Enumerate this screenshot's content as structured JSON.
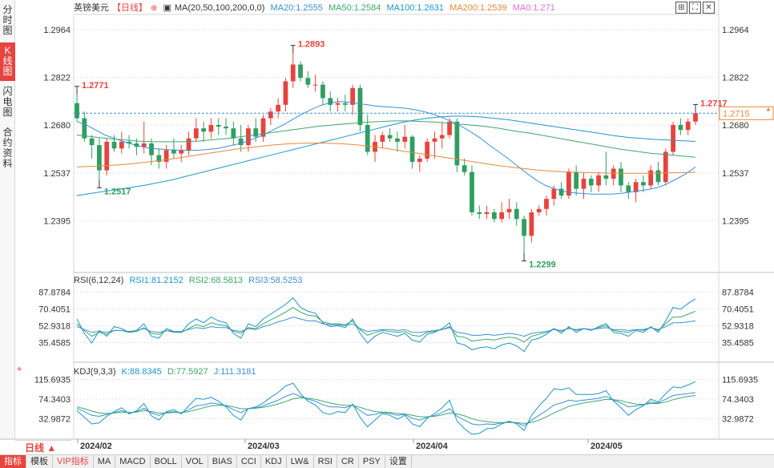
{
  "side_tabs": [
    {
      "label": "分时图",
      "active": false
    },
    {
      "label": "K线图",
      "active": true
    },
    {
      "label": "闪电图",
      "active": false
    },
    {
      "label": "合约资料",
      "active": false
    }
  ],
  "header": {
    "symbol": "英镑美元",
    "period": "【日线】",
    "ma_params": "MA(20,50,100,200,0,0)",
    "ma20": "MA20:1.2555",
    "ma50": "MA50:1.2584",
    "ma100": "MA100:1.2631",
    "ma200": "MA200:1.2539",
    "ma0": "MA0:1.271"
  },
  "window_icons": [
    "expand-icon",
    "fullscreen-icon",
    "close-icon"
  ],
  "price_axis": {
    "ticks": [
      "1.2964",
      "1.2822",
      "1.2680",
      "1.2537",
      "1.2395"
    ],
    "current": "1.2715"
  },
  "annotations": {
    "high_1": "1.2771",
    "low_1": "1.2517",
    "high_main": "1.2893",
    "low_main": "1.2299",
    "high_recent": "1.2717"
  },
  "rsi": {
    "title": "RSI(6,12,24)",
    "rsi1": "RSI1:81.2152",
    "rsi2": "RSI2:68.5813",
    "rsi3": "RSI3:58.5253",
    "ticks": [
      "87.8784",
      "70.4051",
      "52.9318",
      "35.4585"
    ]
  },
  "kdj": {
    "title": "KDJ(9,3,3)",
    "k": "K:88.8345",
    "d": "D:77.5927",
    "j": "J:111.3181",
    "ticks": [
      "115.6935",
      "74.3403",
      "32.9872"
    ]
  },
  "time_axis": [
    "2024/02",
    "2024/03",
    "2024/04",
    "2024/05"
  ],
  "period_button": "日线",
  "toolbar": [
    {
      "label": "指标",
      "active": true
    },
    {
      "label": "模板"
    },
    {
      "label": "VIP指标",
      "vip": true
    },
    {
      "label": "MA"
    },
    {
      "label": "MACD"
    },
    {
      "label": "BOLL"
    },
    {
      "label": "VOL"
    },
    {
      "label": "BIAS"
    },
    {
      "label": "CCI"
    },
    {
      "label": "KDJ"
    },
    {
      "label": "LW&"
    },
    {
      "label": "RSI"
    },
    {
      "label": "CR"
    },
    {
      "label": "PSY"
    },
    {
      "label": "设置"
    }
  ],
  "colors": {
    "up": "#e8433d",
    "down": "#2f9e61",
    "ma20": "#3a8fd6",
    "ma50": "#3aa86b",
    "ma100": "#1b96c9",
    "ma200": "#e8883a",
    "ma0": "#e06bd0",
    "grid": "#e3e3e3"
  },
  "chart_data": {
    "type": "candlestick",
    "title": "英镑美元 日线",
    "ylim": [
      1.226,
      1.299
    ],
    "candles": [
      [
        1.2745,
        1.2771,
        1.269,
        1.27
      ],
      [
        1.27,
        1.272,
        1.263,
        1.264
      ],
      [
        1.264,
        1.265,
        1.258,
        1.262
      ],
      [
        1.262,
        1.264,
        1.2517,
        1.2545
      ],
      [
        1.2545,
        1.264,
        1.253,
        1.263
      ],
      [
        1.263,
        1.265,
        1.26,
        1.261
      ],
      [
        1.261,
        1.266,
        1.2595,
        1.263
      ],
      [
        1.263,
        1.265,
        1.261,
        1.2625
      ],
      [
        1.2625,
        1.264,
        1.259,
        1.2615
      ],
      [
        1.2615,
        1.269,
        1.2595,
        1.2625
      ],
      [
        1.2625,
        1.264,
        1.256,
        1.259
      ],
      [
        1.259,
        1.261,
        1.255,
        1.257
      ],
      [
        1.257,
        1.262,
        1.255,
        1.2605
      ],
      [
        1.2605,
        1.264,
        1.258,
        1.2595
      ],
      [
        1.2595,
        1.262,
        1.257,
        1.2605
      ],
      [
        1.2605,
        1.266,
        1.259,
        1.264
      ],
      [
        1.264,
        1.27,
        1.263,
        1.267
      ],
      [
        1.267,
        1.269,
        1.263,
        1.266
      ],
      [
        1.266,
        1.27,
        1.264,
        1.268
      ],
      [
        1.268,
        1.27,
        1.265,
        1.2675
      ],
      [
        1.2675,
        1.27,
        1.265,
        1.267
      ],
      [
        1.267,
        1.269,
        1.262,
        1.264
      ],
      [
        1.264,
        1.268,
        1.26,
        1.262
      ],
      [
        1.262,
        1.268,
        1.26,
        1.267
      ],
      [
        1.267,
        1.27,
        1.263,
        1.2645
      ],
      [
        1.2645,
        1.271,
        1.263,
        1.27
      ],
      [
        1.27,
        1.273,
        1.268,
        1.272
      ],
      [
        1.272,
        1.276,
        1.27,
        1.274
      ],
      [
        1.274,
        1.282,
        1.272,
        1.281
      ],
      [
        1.281,
        1.2893,
        1.279,
        1.286
      ],
      [
        1.286,
        1.287,
        1.281,
        1.282
      ],
      [
        1.282,
        1.284,
        1.279,
        1.28
      ],
      [
        1.28,
        1.283,
        1.278,
        1.28
      ],
      [
        1.28,
        1.281,
        1.274,
        1.276
      ],
      [
        1.276,
        1.278,
        1.272,
        1.274
      ],
      [
        1.274,
        1.276,
        1.272,
        1.2745
      ],
      [
        1.2745,
        1.277,
        1.272,
        1.274
      ],
      [
        1.274,
        1.28,
        1.271,
        1.279
      ],
      [
        1.279,
        1.28,
        1.266,
        1.268
      ],
      [
        1.268,
        1.271,
        1.259,
        1.26
      ],
      [
        1.26,
        1.265,
        1.257,
        1.263
      ],
      [
        1.263,
        1.266,
        1.261,
        1.265
      ],
      [
        1.265,
        1.267,
        1.263,
        1.264
      ],
      [
        1.264,
        1.266,
        1.26,
        1.263
      ],
      [
        1.263,
        1.268,
        1.261,
        1.2645
      ],
      [
        1.2645,
        1.265,
        1.255,
        1.257
      ],
      [
        1.257,
        1.259,
        1.254,
        1.258
      ],
      [
        1.258,
        1.264,
        1.257,
        1.263
      ],
      [
        1.263,
        1.266,
        1.258,
        1.264
      ],
      [
        1.264,
        1.269,
        1.261,
        1.265
      ],
      [
        1.265,
        1.27,
        1.264,
        1.269
      ],
      [
        1.269,
        1.27,
        1.254,
        1.256
      ],
      [
        1.256,
        1.258,
        1.253,
        1.254
      ],
      [
        1.254,
        1.256,
        1.241,
        1.242
      ],
      [
        1.242,
        1.244,
        1.24,
        1.2415
      ],
      [
        1.2415,
        1.244,
        1.24,
        1.242
      ],
      [
        1.242,
        1.243,
        1.239,
        1.24
      ],
      [
        1.24,
        1.245,
        1.239,
        1.242
      ],
      [
        1.242,
        1.246,
        1.24,
        1.243
      ],
      [
        1.243,
        1.245,
        1.238,
        1.24
      ],
      [
        1.24,
        1.241,
        1.2299,
        1.235
      ],
      [
        1.235,
        1.243,
        1.233,
        1.242
      ],
      [
        1.242,
        1.244,
        1.241,
        1.243
      ],
      [
        1.243,
        1.247,
        1.241,
        1.246
      ],
      [
        1.246,
        1.25,
        1.244,
        1.249
      ],
      [
        1.249,
        1.251,
        1.246,
        1.247
      ],
      [
        1.247,
        1.255,
        1.246,
        1.254
      ],
      [
        1.254,
        1.256,
        1.247,
        1.249
      ],
      [
        1.249,
        1.254,
        1.246,
        1.252
      ],
      [
        1.252,
        1.253,
        1.248,
        1.25
      ],
      [
        1.25,
        1.254,
        1.248,
        1.253
      ],
      [
        1.253,
        1.26,
        1.25,
        1.252
      ],
      [
        1.252,
        1.256,
        1.25,
        1.255
      ],
      [
        1.255,
        1.257,
        1.248,
        1.25
      ],
      [
        1.25,
        1.251,
        1.246,
        1.248
      ],
      [
        1.248,
        1.252,
        1.245,
        1.251
      ],
      [
        1.251,
        1.253,
        1.248,
        1.25
      ],
      [
        1.25,
        1.256,
        1.249,
        1.2545
      ],
      [
        1.2545,
        1.257,
        1.25,
        1.251
      ],
      [
        1.251,
        1.261,
        1.25,
        1.26
      ],
      [
        1.26,
        1.269,
        1.259,
        1.268
      ],
      [
        1.268,
        1.27,
        1.265,
        1.2665
      ],
      [
        1.2665,
        1.27,
        1.265,
        1.269
      ],
      [
        1.269,
        1.2717,
        1.268,
        1.2715
      ]
    ],
    "ma_lines": {
      "MA20": [
        1.269,
        1.268,
        1.2665,
        1.265,
        1.264,
        1.263,
        1.2622,
        1.2615,
        1.261,
        1.2608,
        1.2606,
        1.2605,
        1.2604,
        1.2605,
        1.2607,
        1.261,
        1.2616,
        1.2622,
        1.263,
        1.264,
        1.2652,
        1.2666,
        1.268,
        1.2696,
        1.2712,
        1.2726,
        1.2738,
        1.2746,
        1.275,
        1.2748,
        1.2744,
        1.274,
        1.2736,
        1.2734,
        1.2732,
        1.273,
        1.2726,
        1.272,
        1.2712,
        1.2702,
        1.269,
        1.2676,
        1.266,
        1.2642,
        1.262,
        1.26,
        1.258,
        1.2558,
        1.2536,
        1.2516,
        1.25,
        1.249,
        1.2482,
        1.2478,
        1.2476,
        1.2474,
        1.2474,
        1.2474,
        1.2476,
        1.248,
        1.2484,
        1.2488,
        1.2494,
        1.2505,
        1.252,
        1.2535,
        1.2555
      ],
      "MA50": [
        1.265,
        1.2645,
        1.264,
        1.2636,
        1.2632,
        1.263,
        1.263,
        1.263,
        1.2632,
        1.2636,
        1.264,
        1.2646,
        1.2652,
        1.2658,
        1.2664,
        1.267,
        1.2676,
        1.268,
        1.2684,
        1.2688,
        1.269,
        1.2692,
        1.2692,
        1.269,
        1.2688,
        1.2684,
        1.268,
        1.2676,
        1.267,
        1.2662,
        1.2656,
        1.2648,
        1.264,
        1.2632,
        1.2624,
        1.2616,
        1.2608,
        1.2602,
        1.2596,
        1.2592,
        1.2588,
        1.2584
      ],
      "MA100": [
        1.247,
        1.2476,
        1.2482,
        1.2488,
        1.2494,
        1.25,
        1.2508,
        1.2516,
        1.2526,
        1.2536,
        1.2546,
        1.2556,
        1.2566,
        1.2576,
        1.2586,
        1.2596,
        1.2606,
        1.2616,
        1.2626,
        1.2636,
        1.2646,
        1.2656,
        1.2666,
        1.2676,
        1.2686,
        1.2694,
        1.27,
        1.2704,
        1.2706,
        1.2706,
        1.2704,
        1.27,
        1.2696,
        1.269,
        1.2684,
        1.2678,
        1.2672,
        1.2666,
        1.266,
        1.2654,
        1.2648,
        1.2643,
        1.264,
        1.2637,
        1.2635,
        1.2633,
        1.2631
      ],
      "MA200": [
        1.2555,
        1.2557,
        1.256,
        1.2564,
        1.257,
        1.2576,
        1.2584,
        1.2592,
        1.26,
        1.2608,
        1.2614,
        1.262,
        1.2624,
        1.2626,
        1.2626,
        1.2624,
        1.262,
        1.2614,
        1.2606,
        1.2598,
        1.259,
        1.2582,
        1.2574,
        1.2566,
        1.2558,
        1.2552,
        1.2546,
        1.2542,
        1.254,
        1.2538,
        1.2537,
        1.2536,
        1.2536,
        1.2537,
        1.2538,
        1.2539
      ]
    },
    "rsi_series": {
      "RSI1": [
        60,
        45,
        35,
        48,
        42,
        52,
        50,
        46,
        48,
        55,
        42,
        40,
        50,
        47,
        46,
        55,
        60,
        56,
        62,
        58,
        56,
        45,
        40,
        55,
        52,
        60,
        65,
        70,
        75,
        82,
        72,
        68,
        66,
        56,
        52,
        53,
        51,
        60,
        45,
        35,
        42,
        46,
        44,
        42,
        45,
        38,
        36,
        44,
        46,
        50,
        56,
        35,
        33,
        28,
        30,
        31,
        29,
        33,
        35,
        32,
        26,
        38,
        40,
        44,
        50,
        45,
        52,
        46,
        50,
        48,
        52,
        55,
        46,
        45,
        42,
        48,
        46,
        52,
        46,
        58,
        72,
        70,
        76,
        81
      ],
      "RSI2": [
        55,
        48,
        42,
        46,
        44,
        48,
        48,
        46,
        47,
        51,
        45,
        44,
        48,
        46,
        46,
        50,
        54,
        52,
        56,
        54,
        53,
        47,
        45,
        51,
        50,
        55,
        59,
        63,
        67,
        72,
        67,
        64,
        63,
        57,
        55,
        55,
        54,
        58,
        49,
        43,
        46,
        48,
        47,
        46,
        47,
        43,
        42,
        46,
        47,
        49,
        52,
        42,
        41,
        37,
        38,
        39,
        38,
        40,
        41,
        40,
        36,
        42,
        44,
        46,
        50,
        47,
        51,
        48,
        50,
        49,
        51,
        53,
        48,
        47,
        46,
        49,
        48,
        51,
        48,
        55,
        62,
        62,
        65,
        68
      ],
      "RSI3": [
        52,
        49,
        46,
        47,
        46,
        48,
        48,
        47,
        48,
        50,
        47,
        46,
        48,
        47,
        47,
        49,
        51,
        50,
        52,
        51,
        51,
        48,
        47,
        50,
        49,
        52,
        54,
        57,
        59,
        62,
        60,
        58,
        58,
        55,
        54,
        54,
        53,
        55,
        50,
        47,
        48,
        49,
        49,
        48,
        49,
        46,
        46,
        47,
        48,
        49,
        51,
        46,
        45,
        43,
        43,
        44,
        43,
        44,
        45,
        44,
        42,
        45,
        46,
        47,
        49,
        48,
        50,
        49,
        50,
        49,
        50,
        51,
        49,
        49,
        48,
        49,
        49,
        51,
        49,
        52,
        56,
        56,
        57,
        58
      ]
    },
    "kdj_series": {
      "K": [
        55,
        48,
        40,
        38,
        42,
        46,
        50,
        45,
        48,
        55,
        45,
        40,
        46,
        48,
        45,
        52,
        60,
        62,
        66,
        64,
        60,
        52,
        46,
        54,
        56,
        60,
        66,
        72,
        80,
        86,
        80,
        74,
        70,
        62,
        58,
        58,
        56,
        62,
        50,
        40,
        42,
        46,
        44,
        40,
        42,
        34,
        30,
        36,
        40,
        46,
        54,
        38,
        30,
        22,
        20,
        22,
        21,
        24,
        26,
        24,
        18,
        30,
        40,
        50,
        62,
        66,
        72,
        70,
        72,
        74,
        76,
        80,
        72,
        66,
        58,
        60,
        62,
        68,
        66,
        74,
        82,
        84,
        86,
        88
      ],
      "D": [
        58,
        54,
        49,
        45,
        44,
        45,
        47,
        46,
        47,
        50,
        48,
        45,
        45,
        46,
        46,
        48,
        52,
        56,
        60,
        61,
        61,
        58,
        54,
        54,
        55,
        57,
        60,
        64,
        69,
        75,
        77,
        76,
        74,
        70,
        66,
        63,
        61,
        61,
        57,
        52,
        48,
        47,
        46,
        44,
        43,
        40,
        37,
        37,
        38,
        41,
        45,
        43,
        39,
        33,
        29,
        27,
        25,
        25,
        25,
        25,
        23,
        25,
        30,
        37,
        45,
        52,
        59,
        63,
        66,
        69,
        71,
        74,
        73,
        71,
        67,
        64,
        63,
        65,
        65,
        68,
        73,
        77,
        80,
        82
      ],
      "J": [
        50,
        36,
        22,
        24,
        38,
        48,
        56,
        43,
        50,
        65,
        39,
        30,
        48,
        52,
        43,
        60,
        76,
        74,
        78,
        70,
        58,
        40,
        30,
        54,
        58,
        66,
        78,
        88,
        102,
        108,
        86,
        70,
        62,
        46,
        42,
        48,
        46,
        64,
        36,
        16,
        30,
        44,
        40,
        32,
        40,
        22,
        16,
        34,
        44,
        56,
        72,
        28,
        12,
        0,
        2,
        12,
        13,
        22,
        28,
        22,
        8,
        40,
        60,
        76,
        96,
        94,
        98,
        84,
        84,
        84,
        86,
        92,
        70,
        56,
        40,
        52,
        60,
        74,
        68,
        86,
        100,
        98,
        104,
        111
      ]
    }
  }
}
